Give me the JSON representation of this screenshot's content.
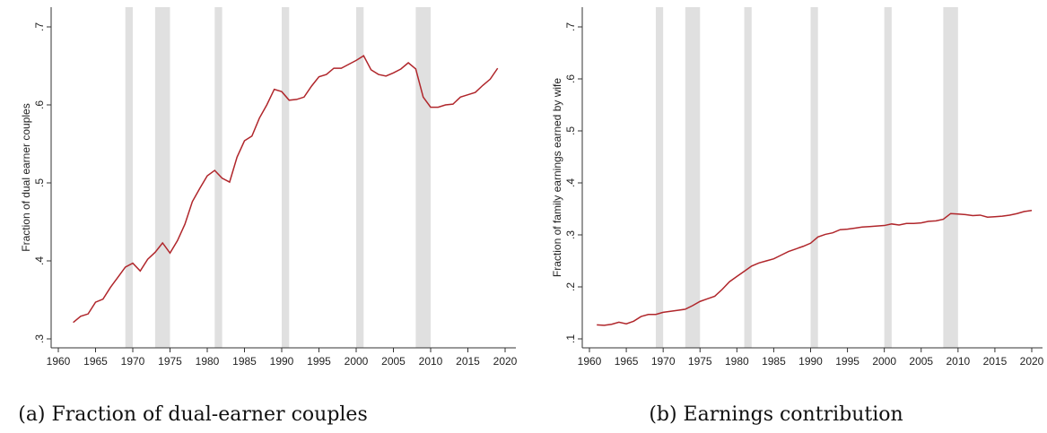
{
  "chart_data": [
    {
      "type": "line",
      "caption": "(a) Fraction of dual-earner couples",
      "ylabel": "Fraction of dual earner couples",
      "color": "#b0262b",
      "shade_color": "#e0e0e0",
      "x": [
        1962,
        1963,
        1964,
        1965,
        1966,
        1967,
        1968,
        1969,
        1970,
        1971,
        1972,
        1973,
        1974,
        1975,
        1976,
        1977,
        1978,
        1979,
        1980,
        1981,
        1982,
        1983,
        1984,
        1985,
        1986,
        1987,
        1988,
        1989,
        1990,
        1991,
        1992,
        1993,
        1994,
        1995,
        1996,
        1997,
        1998,
        1999,
        2000,
        2001,
        2002,
        2003,
        2004,
        2005,
        2006,
        2007,
        2008,
        2009,
        2010,
        2011,
        2012,
        2013,
        2014,
        2015,
        2016,
        2017,
        2018,
        2019
      ],
      "values": [
        0.321,
        0.329,
        0.332,
        0.347,
        0.351,
        0.366,
        0.379,
        0.392,
        0.397,
        0.387,
        0.402,
        0.411,
        0.423,
        0.41,
        0.426,
        0.447,
        0.476,
        0.493,
        0.509,
        0.516,
        0.506,
        0.501,
        0.533,
        0.554,
        0.56,
        0.583,
        0.6,
        0.62,
        0.617,
        0.606,
        0.607,
        0.61,
        0.624,
        0.636,
        0.639,
        0.647,
        0.647,
        0.652,
        0.657,
        0.663,
        0.645,
        0.639,
        0.637,
        0.641,
        0.646,
        0.654,
        0.646,
        0.61,
        0.597,
        0.597,
        0.6,
        0.601,
        0.61,
        0.613,
        0.616,
        0.625,
        0.633,
        0.647
      ],
      "shaded": [
        [
          1969,
          1970
        ],
        [
          1973,
          1975
        ],
        [
          1981,
          1982
        ],
        [
          1990,
          1991
        ],
        [
          2000,
          2001
        ],
        [
          2008,
          2010
        ]
      ],
      "xlim": [
        1960,
        2020
      ],
      "ylim": [
        0.3,
        0.7
      ],
      "xticks": [
        1960,
        1965,
        1970,
        1975,
        1980,
        1985,
        1990,
        1995,
        2000,
        2005,
        2010,
        2015,
        2020
      ],
      "yticks": [
        {
          "value": 0.3,
          "label": ".3"
        },
        {
          "value": 0.4,
          "label": ".4"
        },
        {
          "value": 0.5,
          "label": ".5"
        },
        {
          "value": 0.6,
          "label": ".6"
        },
        {
          "value": 0.7,
          "label": ".7"
        }
      ]
    },
    {
      "type": "line",
      "caption": "(b) Earnings contribution",
      "ylabel": "Fraction of family earnings earned by wife",
      "color": "#b0262b",
      "shade_color": "#e0e0e0",
      "x": [
        1961,
        1962,
        1963,
        1964,
        1965,
        1966,
        1967,
        1968,
        1969,
        1970,
        1971,
        1972,
        1973,
        1974,
        1975,
        1976,
        1977,
        1978,
        1979,
        1980,
        1981,
        1982,
        1983,
        1984,
        1985,
        1986,
        1987,
        1988,
        1989,
        1990,
        1991,
        1992,
        1993,
        1994,
        1995,
        1996,
        1997,
        1998,
        1999,
        2000,
        2001,
        2002,
        2003,
        2004,
        2005,
        2006,
        2007,
        2008,
        2009,
        2010,
        2011,
        2012,
        2013,
        2014,
        2015,
        2016,
        2017,
        2018,
        2019,
        2020
      ],
      "values": [
        0.127,
        0.126,
        0.128,
        0.132,
        0.129,
        0.134,
        0.143,
        0.147,
        0.147,
        0.151,
        0.153,
        0.155,
        0.157,
        0.164,
        0.172,
        0.177,
        0.182,
        0.195,
        0.21,
        0.22,
        0.23,
        0.24,
        0.246,
        0.25,
        0.254,
        0.261,
        0.268,
        0.273,
        0.278,
        0.284,
        0.296,
        0.301,
        0.304,
        0.31,
        0.311,
        0.313,
        0.315,
        0.316,
        0.317,
        0.318,
        0.321,
        0.319,
        0.322,
        0.322,
        0.323,
        0.326,
        0.327,
        0.33,
        0.341,
        0.34,
        0.339,
        0.337,
        0.338,
        0.334,
        0.335,
        0.336,
        0.338,
        0.341,
        0.345,
        0.347
      ],
      "shaded": [
        [
          1969,
          1970
        ],
        [
          1973,
          1975
        ],
        [
          1981,
          1982
        ],
        [
          1990,
          1991
        ],
        [
          2000,
          2001
        ],
        [
          2008,
          2010
        ]
      ],
      "xlim": [
        1960,
        2020
      ],
      "ylim": [
        0.1,
        0.7
      ],
      "xticks": [
        1960,
        1965,
        1970,
        1975,
        1980,
        1985,
        1990,
        1995,
        2000,
        2005,
        2010,
        2015,
        2020
      ],
      "yticks": [
        {
          "value": 0.1,
          "label": ".1"
        },
        {
          "value": 0.2,
          "label": ".2"
        },
        {
          "value": 0.3,
          "label": ".3"
        },
        {
          "value": 0.4,
          "label": ".4"
        },
        {
          "value": 0.5,
          "label": ".5"
        },
        {
          "value": 0.6,
          "label": ".6"
        },
        {
          "value": 0.7,
          "label": ".7"
        }
      ]
    }
  ]
}
